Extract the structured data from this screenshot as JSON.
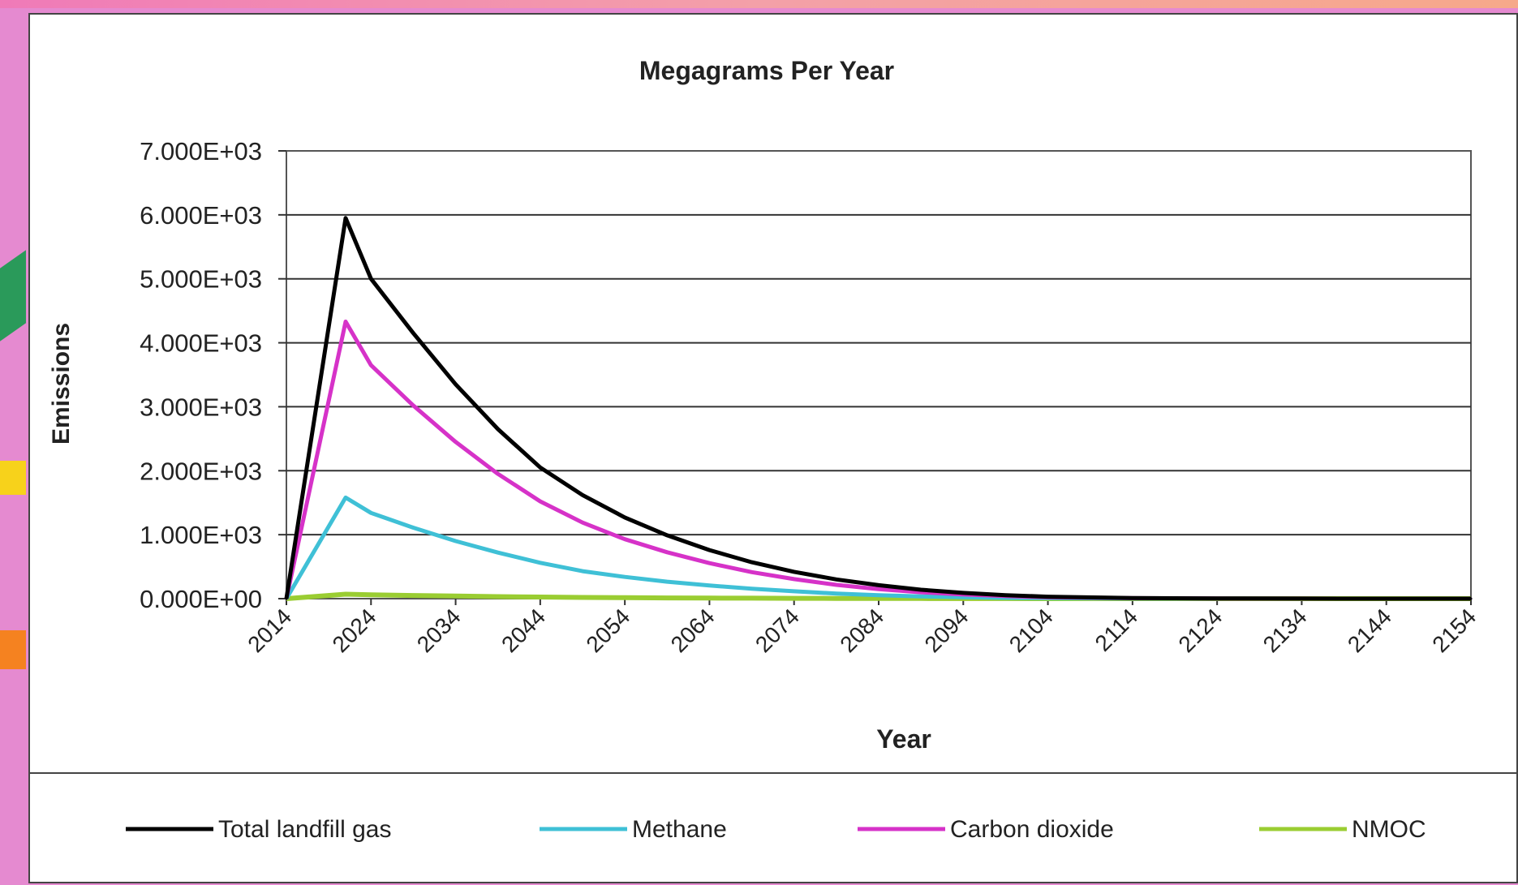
{
  "chart_data": {
    "type": "line",
    "title": "Megagrams Per Year",
    "xlabel": "Year",
    "ylabel": "Emissions",
    "xlim": [
      2014,
      2154
    ],
    "ylim": [
      0,
      7000
    ],
    "yticks": [
      "0.000E+00",
      "1.000E+03",
      "2.000E+03",
      "3.000E+03",
      "4.000E+03",
      "5.000E+03",
      "6.000E+03",
      "7.000E+03"
    ],
    "xticks": [
      "2014",
      "2024",
      "2034",
      "2044",
      "2054",
      "2064",
      "2074",
      "2084",
      "2094",
      "2104",
      "2114",
      "2124",
      "2134",
      "2144",
      "2154"
    ],
    "grid": true,
    "legend_position": "bottom",
    "x": [
      2014,
      2021,
      2024,
      2029,
      2034,
      2039,
      2044,
      2049,
      2054,
      2059,
      2064,
      2069,
      2074,
      2079,
      2084,
      2089,
      2094,
      2099,
      2104,
      2114,
      2124,
      2134,
      2144,
      2154
    ],
    "series": [
      {
        "name": "Total landfill gas",
        "color": "#000000",
        "values": [
          0,
          5950,
          5000,
          4150,
          3350,
          2650,
          2050,
          1620,
          1270,
          990,
          760,
          570,
          420,
          300,
          210,
          140,
          90,
          55,
          30,
          10,
          4,
          1,
          0,
          0
        ]
      },
      {
        "name": "Methane",
        "color": "#3fc0d6",
        "values": [
          0,
          1580,
          1340,
          1110,
          900,
          720,
          560,
          430,
          340,
          265,
          205,
          155,
          115,
          80,
          55,
          35,
          22,
          13,
          7,
          2,
          1,
          0,
          0,
          0
        ]
      },
      {
        "name": "Carbon dioxide",
        "color": "#d632c8",
        "values": [
          0,
          4330,
          3650,
          3020,
          2450,
          1950,
          1520,
          1190,
          930,
          725,
          555,
          415,
          305,
          215,
          150,
          100,
          65,
          40,
          22,
          7,
          3,
          1,
          0,
          0
        ]
      },
      {
        "name": "NMOC",
        "color": "#9acd32",
        "values": [
          0,
          70,
          60,
          50,
          40,
          32,
          25,
          19,
          15,
          12,
          9,
          7,
          5,
          4,
          3,
          2,
          1,
          1,
          0,
          0,
          0,
          0,
          0,
          0
        ]
      }
    ]
  }
}
